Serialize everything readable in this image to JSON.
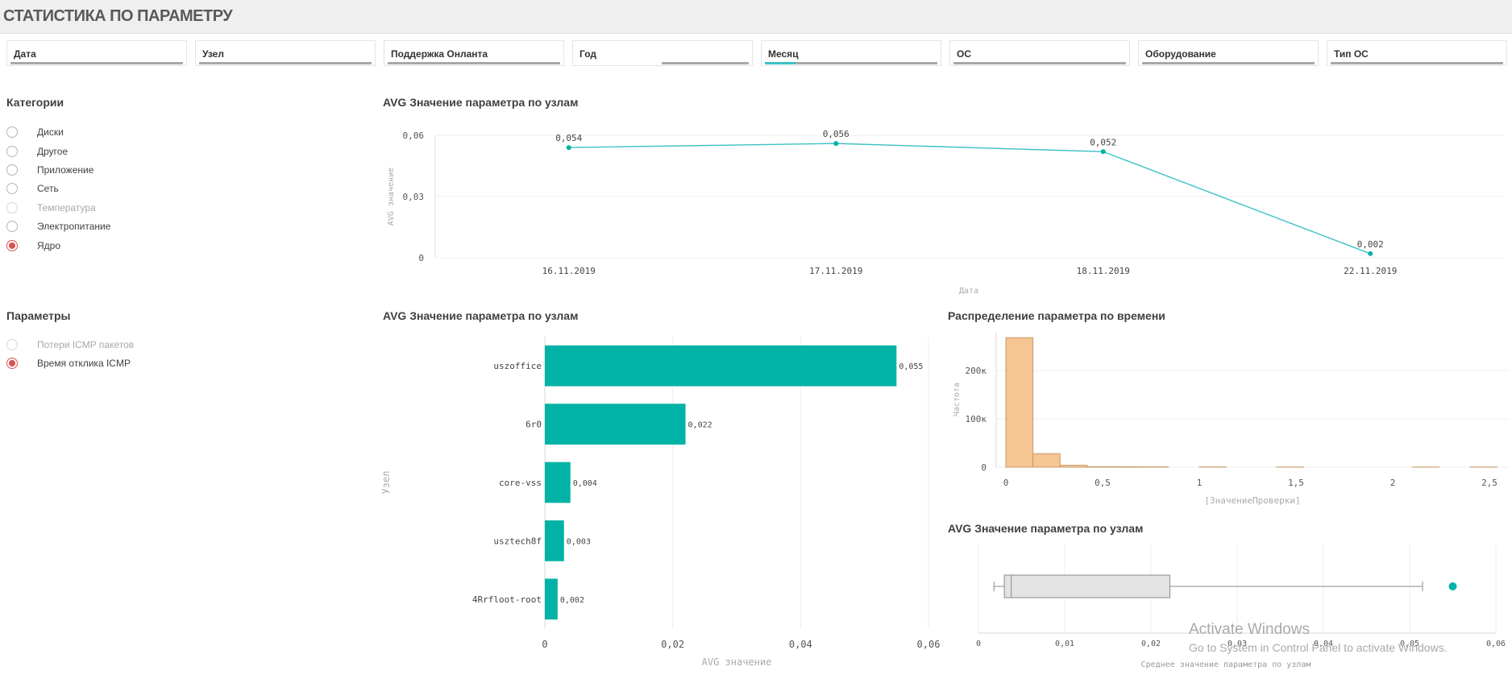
{
  "page": {
    "title": "СТАТИСТИКА ПО ПАРАМЕТРУ"
  },
  "filters": [
    "Дата",
    "Узел",
    "Поддержка Онланта",
    "Год",
    "Месяц",
    "ОС",
    "Оборудование",
    "Тип ОС"
  ],
  "categories": {
    "title": "Категории",
    "items": [
      {
        "label": "Диски",
        "state": "normal"
      },
      {
        "label": "Другое",
        "state": "normal"
      },
      {
        "label": "Приложение",
        "state": "normal"
      },
      {
        "label": "Сеть",
        "state": "normal"
      },
      {
        "label": "Температура",
        "state": "dim"
      },
      {
        "label": "Электропитание",
        "state": "normal"
      },
      {
        "label": "Ядро",
        "state": "selected"
      }
    ]
  },
  "parameters": {
    "title": "Параметры",
    "items": [
      {
        "label": "Потери ICMP пакетов",
        "state": "dim"
      },
      {
        "label": "Время отклика ICMP",
        "state": "selected"
      }
    ]
  },
  "colors": {
    "line": "#3dc1c5",
    "bar": "#00b3a6",
    "hist": "#f5c593",
    "hist_stroke": "#c79a6a",
    "selected": "#d9534f",
    "box_fill": "#e3e3e3"
  },
  "chart_data": [
    {
      "id": "line",
      "type": "line",
      "title": "AVG Значение параметра по узлам",
      "xlabel": "Дата",
      "ylabel": "AVG значение",
      "categories": [
        "16.11.2019",
        "17.11.2019",
        "18.11.2019",
        "22.11.2019"
      ],
      "values": [
        0.054,
        0.056,
        0.052,
        0.002
      ],
      "value_labels": [
        "0,054",
        "0,056",
        "0,052",
        "0,002"
      ],
      "ylim": [
        0,
        0.06
      ],
      "yticks": [
        0,
        0.03,
        0.06
      ],
      "ytick_labels": [
        "0",
        "0,03",
        "0,06"
      ],
      "grid": true
    },
    {
      "id": "bar",
      "type": "bar",
      "orientation": "horizontal",
      "title": "AVG Значение параметра по узлам",
      "xlabel": "AVG значение",
      "ylabel": "Узел",
      "categories": [
        "uszoffice",
        "6r0",
        "core-vss",
        "usztech8f",
        "4Rrfloot-root"
      ],
      "values": [
        0.055,
        0.022,
        0.004,
        0.003,
        0.002
      ],
      "value_labels": [
        "0,055",
        "0,022",
        "0,004",
        "0,003",
        "0,002"
      ],
      "xlim": [
        0,
        0.06
      ],
      "xticks": [
        0,
        0.02,
        0.04,
        0.06
      ],
      "xtick_labels": [
        "0",
        "0,02",
        "0,04",
        "0,06"
      ],
      "grid": true
    },
    {
      "id": "histogram",
      "type": "bar",
      "title": "Распределение параметра по времени",
      "xlabel": "[ЗначениеПроверки]",
      "ylabel": "Частота",
      "bin_width": 0.14,
      "bin_starts": [
        0,
        0.14,
        0.28,
        0.42,
        0.56,
        0.7,
        1.0,
        1.4,
        2.1,
        2.4
      ],
      "values": [
        268000,
        28000,
        4000,
        1000,
        800,
        600,
        400,
        300,
        200,
        200
      ],
      "xlim": [
        -0.05,
        2.6
      ],
      "xticks": [
        0,
        0.5,
        1,
        1.5,
        2,
        2.5
      ],
      "xtick_labels": [
        "0",
        "0,5",
        "1",
        "1,5",
        "2",
        "2,5"
      ],
      "ylim": [
        0,
        280000
      ],
      "yticks": [
        0,
        100000,
        200000
      ],
      "ytick_labels": [
        "0",
        "100к",
        "200к"
      ],
      "grid": true
    },
    {
      "id": "box",
      "type": "box",
      "title": "AVG Значение параметра по узлам",
      "xlabel": "Среднее значение параметра по узлам",
      "whisker_low": 0.0018,
      "q1": 0.003,
      "median": 0.0038,
      "q3": 0.0222,
      "whisker_high": 0.0515,
      "outliers": [
        0.055
      ],
      "xlim": [
        0,
        0.06
      ],
      "xticks": [
        0,
        0.01,
        0.02,
        0.03,
        0.04,
        0.05,
        0.06
      ],
      "xtick_labels": [
        "0",
        "0,01",
        "0,02",
        "0,03",
        "0,04",
        "0,05",
        "0,06"
      ],
      "grid": true
    }
  ],
  "watermark": {
    "line1": "Activate Windows",
    "line2": "Go to System in Control Panel to activate Windows."
  }
}
